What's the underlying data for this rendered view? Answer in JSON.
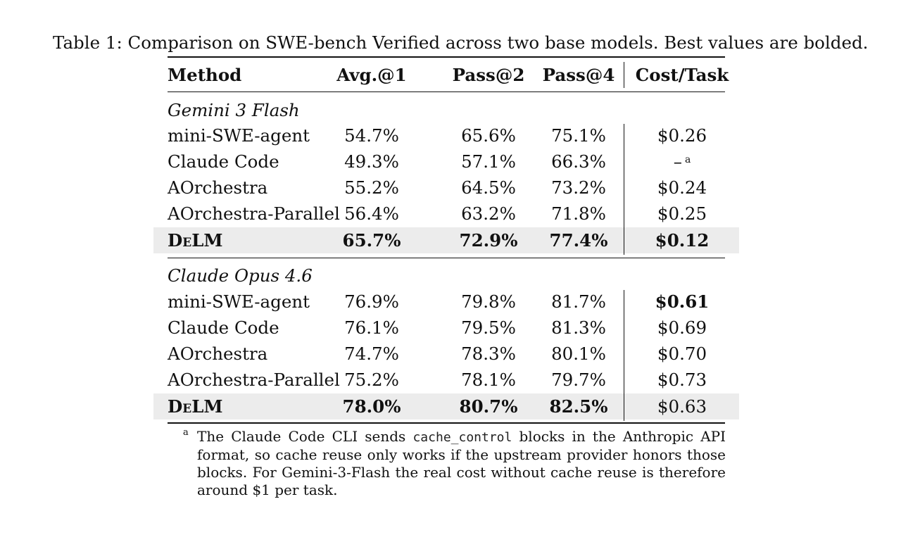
{
  "caption": "Table 1: Comparison on SWE-bench Verified across two base models. Best values are bolded.",
  "headers": {
    "method": "Method",
    "avg": "Avg.@1",
    "pass2": "Pass@2",
    "pass4": "Pass@4",
    "cost": "Cost/Task"
  },
  "groups": [
    {
      "title": "Gemini 3 Flash",
      "rows": [
        {
          "method": "mini-SWE-agent",
          "avg": "54.7%",
          "pass2": "65.6%",
          "pass4": "75.1%",
          "cost": "$0.26"
        },
        {
          "method": "Claude Code",
          "avg": "49.3%",
          "pass2": "57.1%",
          "pass4": "66.3%",
          "cost": "–",
          "cost_note": "a"
        },
        {
          "method": "AOrchestra",
          "avg": "55.2%",
          "pass2": "64.5%",
          "pass4": "73.2%",
          "cost": "$0.24"
        },
        {
          "method": "AOrchestra-Parallel",
          "avg": "56.4%",
          "pass2": "63.2%",
          "pass4": "71.8%",
          "cost": "$0.25"
        },
        {
          "method": "DeLM",
          "avg": "65.7%",
          "pass2": "72.9%",
          "pass4": "77.4%",
          "cost": "$0.12"
        }
      ]
    },
    {
      "title": "Claude Opus 4.6",
      "rows": [
        {
          "method": "mini-SWE-agent",
          "avg": "76.9%",
          "pass2": "79.8%",
          "pass4": "81.7%",
          "cost": "$0.61"
        },
        {
          "method": "Claude Code",
          "avg": "76.1%",
          "pass2": "79.5%",
          "pass4": "81.3%",
          "cost": "$0.69"
        },
        {
          "method": "AOrchestra",
          "avg": "74.7%",
          "pass2": "78.3%",
          "pass4": "80.1%",
          "cost": "$0.70"
        },
        {
          "method": "AOrchestra-Parallel",
          "avg": "75.2%",
          "pass2": "78.1%",
          "pass4": "79.7%",
          "cost": "$0.73"
        },
        {
          "method": "DeLM",
          "avg": "78.0%",
          "pass2": "80.7%",
          "pass4": "82.5%",
          "cost": "$0.63"
        }
      ]
    }
  ],
  "footnote": {
    "mark": "a",
    "text_before": "The Claude Code CLI sends ",
    "code": "cache_control",
    "text_after": " blocks in the Anthropic API format, so cache reuse only works if the upstream provider honors those blocks.  For Gemini-3-Flash the real cost without cache reuse is therefore around $1 per task."
  }
}
